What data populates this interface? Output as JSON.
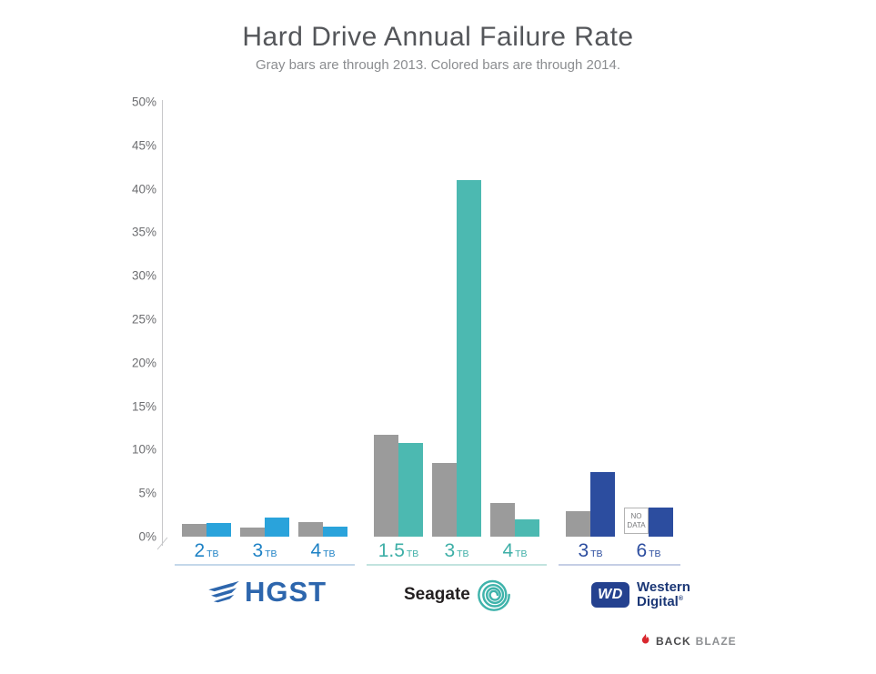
{
  "chart_data": {
    "type": "bar",
    "title": "Hard Drive Annual Failure Rate",
    "subtitle": "Gray bars are through 2013.  Colored bars are through 2014.",
    "ylim": [
      0,
      50
    ],
    "yticks": [
      "0%",
      "5%",
      "10%",
      "15%",
      "20%",
      "25%",
      "30%",
      "35%",
      "40%",
      "45%",
      "50%"
    ],
    "grid": false,
    "legend_position": "none",
    "no_data_label": "NO DATA",
    "series": [
      {
        "name": "Through 2013",
        "color": "#9b9b9b"
      },
      {
        "name": "Through 2014",
        "color": "vendor-accent"
      }
    ],
    "groups": [
      {
        "vendor": "HGST",
        "accent": "#2aa3db",
        "label_color": "#1e82c5",
        "underline_color": "#c4d8ea",
        "bars": [
          {
            "capacity": "2",
            "unit": "TB",
            "through_2013": 1.5,
            "through_2014": 1.6
          },
          {
            "capacity": "3",
            "unit": "TB",
            "through_2013": 1.0,
            "through_2014": 2.2
          },
          {
            "capacity": "4",
            "unit": "TB",
            "through_2013": 1.7,
            "through_2014": 1.2
          }
        ]
      },
      {
        "vendor": "Seagate",
        "accent": "#4cb9b1",
        "label_color": "#3eafa7",
        "underline_color": "#c2e3df",
        "bars": [
          {
            "capacity": "1.5",
            "unit": "TB",
            "through_2013": 11.7,
            "through_2014": 10.8
          },
          {
            "capacity": "3",
            "unit": "TB",
            "through_2013": 8.5,
            "through_2014": 41.0
          },
          {
            "capacity": "4",
            "unit": "TB",
            "through_2013": 3.9,
            "through_2014": 2.0
          }
        ]
      },
      {
        "vendor": "Western Digital",
        "accent": "#2c4d9f",
        "label_color": "#2c4d9f",
        "underline_color": "#c5cee5",
        "bars": [
          {
            "capacity": "3",
            "unit": "TB",
            "through_2013": 2.9,
            "through_2014": 7.4
          },
          {
            "capacity": "6",
            "unit": "TB",
            "through_2013": null,
            "through_2014": 3.3
          }
        ]
      }
    ]
  },
  "logos": {
    "hgst": {
      "text": "HGST",
      "color": "#2d66ad"
    },
    "seagate": {
      "text": "Seagate",
      "color": "#231f20",
      "spiral_color": "#3fb3ab"
    },
    "wd": {
      "mark": "WD",
      "line1": "Western",
      "line2": "Digital",
      "reg_mark": "®",
      "text_color": "#1b3776",
      "mark_bg": "#24418f"
    },
    "backblaze": {
      "part1": "BACK",
      "part2": "BLAZE",
      "flame_color": "#d9272e",
      "part1_color": "#4b4b4d",
      "part2_color": "#8e9093"
    }
  }
}
